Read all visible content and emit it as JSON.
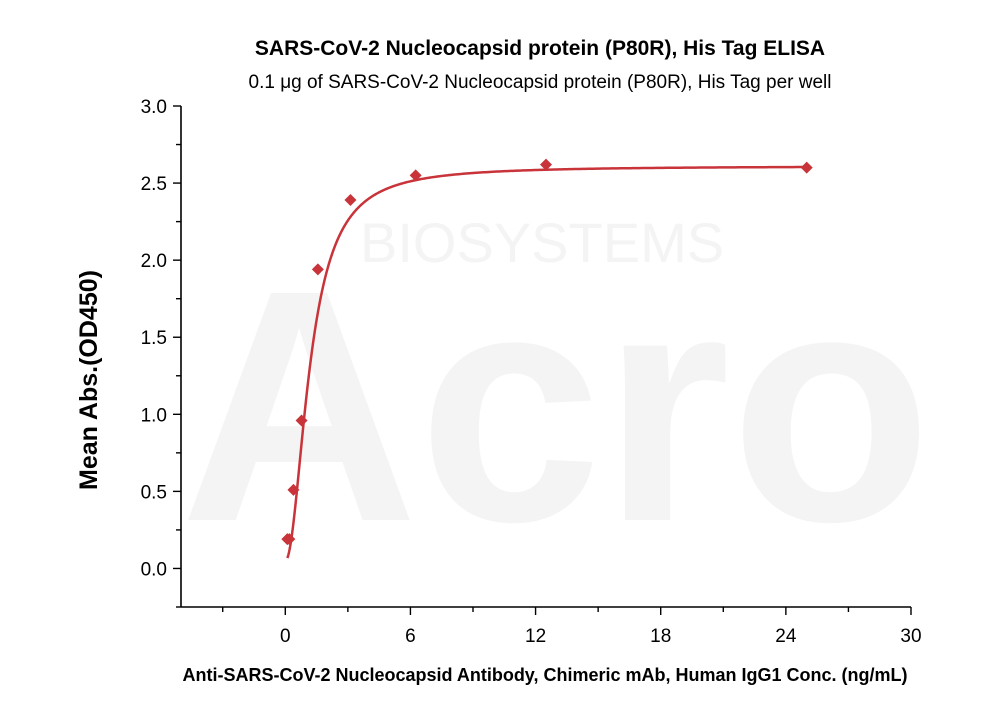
{
  "chart_data": {
    "type": "scatter",
    "title": "SARS-CoV-2 Nucleocapsid protein (P80R), His Tag ELISA",
    "subtitle": "0.1 μg of SARS-CoV-2 Nucleocapsid protein (P80R), His Tag per well",
    "xlabel": "Anti-SARS-CoV-2 Nucleocapsid Antibody, Chimeric mAb, Human IgG1 Conc. (ng/mL)",
    "ylabel": "Mean Abs.(OD450)",
    "xlim": [
      -5,
      30
    ],
    "ylim": [
      -0.25,
      3.0
    ],
    "x_ticks": [
      "0",
      "6",
      "12",
      "18",
      "24",
      "30"
    ],
    "y_ticks": [
      "0.0",
      "0.5",
      "1.0",
      "1.5",
      "2.0",
      "2.5",
      "3.0"
    ],
    "grid": false,
    "series": [
      {
        "color": "#c8343a",
        "x": [
          0.098,
          0.195,
          0.391,
          0.781,
          1.563,
          3.125,
          6.25,
          12.5,
          25
        ],
        "y": [
          0.19,
          0.19,
          0.51,
          0.96,
          1.94,
          2.39,
          2.55,
          2.62,
          2.6
        ]
      }
    ],
    "fit_curve": {
      "color": "#c8343a",
      "min": 0.05,
      "max": 2.61,
      "ec50": 1.2,
      "hill": 2.0
    },
    "watermark": [
      "Acro",
      "BIOSYSTEMS"
    ]
  }
}
